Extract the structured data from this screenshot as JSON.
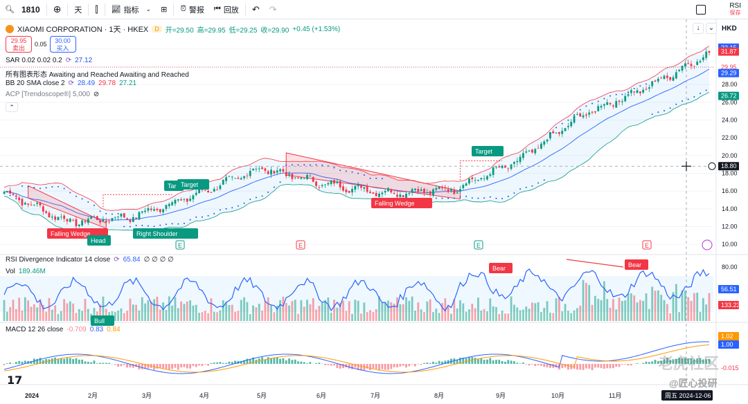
{
  "toolbar": {
    "symbol": "1810",
    "interval": "天",
    "indicators_label": "指标",
    "alert_label": "警报",
    "replay_label": "回放",
    "rsi_label": "RSI",
    "save_label": "保存"
  },
  "header": {
    "title": "XIAOMI CORPORATION · 1天 · HKEX",
    "badge": "D",
    "open": "开=29.50",
    "high": "高=29.95",
    "low": "低=29.25",
    "close": "收=29.90",
    "change": "+0.45 (+1.53%)",
    "currency": "HKD"
  },
  "trade": {
    "sell_price": "29.95",
    "sell_label": "卖出",
    "spread": "0.05",
    "buy_price": "30.00",
    "buy_label": "买入"
  },
  "legends": {
    "sar_name": "SAR 0.02 0.02 0.2",
    "sar_value": "27.12",
    "pattern_name": "所有图表形态 Awaiting and Reached Awaiting and Reached",
    "bb_name": "BB 20 SMA close 2",
    "bb_mid": "28.49",
    "bb_up": "29.78",
    "bb_low": "27.21",
    "acp_name": "ACP [Trendoscope®] 5,000",
    "rsi_name": "RSI Divergence Indicator 14 close",
    "rsi_value": "65.84",
    "rsi_extra": "∅ ∅ ∅ ∅",
    "vol_name": "Vol",
    "vol_value": "189.46M",
    "macd_name": "MACD 12 26 close",
    "macd_hist": "-0.709",
    "macd_line": "0.83",
    "macd_signal": "0.84"
  },
  "colors": {
    "up": "#089981",
    "down": "#f23645",
    "bb_upper": "#f23645",
    "bb_lower": "#089981",
    "bb_mid": "#2962ff",
    "sar": "#1e53e5",
    "rsi": "#2962ff",
    "macd": "#2962ff",
    "signal": "#ff9800"
  },
  "annotations": {
    "falling_wedge_1": "Falling Wedge",
    "head": "Head",
    "right_shoulder": "Right Shoulder",
    "target_1": "Tar",
    "target_2": "Target",
    "falling_wedge_2": "Falling Wedge",
    "target_3": "Target",
    "bear_1": "Bear",
    "bear_2": "Bear",
    "bull": "Bull",
    "earnings": "E"
  },
  "price_scale": {
    "ticks": [
      "32.15",
      "31.87",
      "30.00",
      "29.95",
      "29.29",
      "28.00",
      "26.72",
      "26.00",
      "24.00",
      "22.00",
      "20.00",
      "18.80",
      "18.00",
      "16.00",
      "14.00",
      "12.00",
      "10.00"
    ],
    "tag_top_blue": "32.15",
    "tag_red": "31.87",
    "tag_close": "29.95",
    "tag_bb_mid": "29.29",
    "tag_bb_low": "26.72",
    "crosshair": "18.80"
  },
  "rsi_scale": {
    "ticks": [
      "80.00",
      "60.00",
      "40.00"
    ],
    "tag_value": "56.51",
    "tag_vol": "133.23M"
  },
  "macd_scale": {
    "tag_signal": "1.02",
    "tag_macd": "1.00",
    "tag_hist": "-0.015"
  },
  "time_axis": {
    "labels": [
      "2024",
      "2月",
      "3月",
      "4月",
      "5月",
      "6月",
      "7月",
      "8月",
      "9月",
      "10月",
      "11月"
    ],
    "crosshair": "周五 2024-12-06"
  },
  "watermarks": {
    "tiger": "老虎社区",
    "huixin": "@匠心投研"
  },
  "chart_data": {
    "type": "line",
    "title": "XIAOMI CORPORATION · 1天 · HKEX",
    "xlabel": "",
    "ylabel": "",
    "x": [
      "2024-01",
      "2024-02",
      "2024-03",
      "2024-04",
      "2024-05",
      "2024-06",
      "2024-07",
      "2024-08",
      "2024-09",
      "2024-10",
      "2024-11",
      "2024-12"
    ],
    "ylim": [
      10,
      32
    ],
    "series": [
      {
        "name": "close",
        "values": [
          15.9,
          12.5,
          13.1,
          15.6,
          18.6,
          16.8,
          15.8,
          16.2,
          19.3,
          24.5,
          27.6,
          31.5
        ]
      }
    ]
  }
}
